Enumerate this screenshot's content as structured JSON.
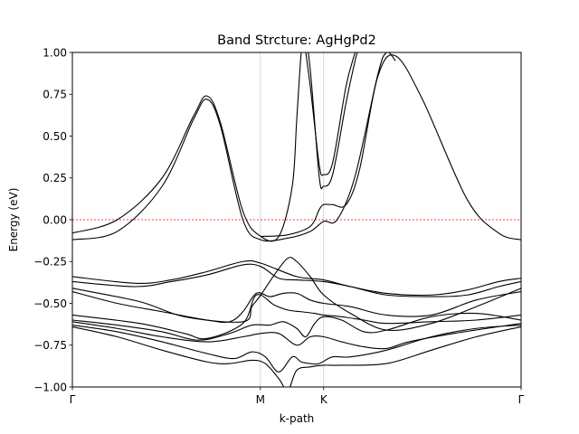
{
  "chart_data": {
    "type": "line",
    "title": "Band Strcture: AgHgPd2",
    "xlabel": "k-path",
    "ylabel": "Energy (eV)",
    "ylim": [
      -1.0,
      1.0
    ],
    "xlim": [
      0,
      1
    ],
    "yticks": [
      -1.0,
      -0.75,
      -0.5,
      -0.25,
      0.0,
      0.25,
      0.5,
      0.75,
      1.0
    ],
    "ytick_labels": [
      "−1.00",
      "−0.75",
      "−0.50",
      "−0.25",
      "0.00",
      "0.25",
      "0.50",
      "0.75",
      "1.00"
    ],
    "high_symmetry_points": [
      {
        "label": "Γ",
        "x": 0.0
      },
      {
        "label": "M",
        "x": 0.419
      },
      {
        "label": "K",
        "x": 0.56
      },
      {
        "label": "Γ",
        "x": 1.0
      }
    ],
    "fermi_level": 0.0,
    "line_color": "#000000",
    "fermi_color": "#ff0000",
    "vline_color": "#cccccc",
    "series": [
      {
        "x": [
          0,
          0.1,
          0.2,
          0.27,
          0.3,
          0.33,
          0.38,
          0.42,
          0.46,
          0.49,
          0.5,
          0.51,
          0.52
        ],
        "y": [
          -0.08,
          0.0,
          0.25,
          0.62,
          0.74,
          0.58,
          0.05,
          -0.1,
          -0.1,
          0.2,
          0.6,
          1.0,
          1.2
        ]
      },
      {
        "x": [
          0,
          0.1,
          0.2,
          0.27,
          0.3,
          0.33,
          0.38,
          0.42,
          0.48,
          0.53,
          0.56,
          0.59,
          0.63,
          0.68,
          0.7,
          0.72
        ],
        "y": [
          -0.12,
          -0.07,
          0.2,
          0.6,
          0.72,
          0.56,
          0.0,
          -0.12,
          -0.11,
          -0.07,
          -0.01,
          0.0,
          0.26,
          0.86,
          1.0,
          0.95
        ]
      },
      {
        "x": [
          0.51,
          0.53,
          0.55,
          0.56,
          0.58,
          0.61,
          0.63,
          0.64
        ],
        "y": [
          1.2,
          0.8,
          0.33,
          0.27,
          0.34,
          0.8,
          1.0,
          1.1
        ]
      },
      {
        "x": [
          0.51,
          0.53,
          0.55,
          0.56,
          0.58,
          0.61,
          0.63,
          0.64
        ],
        "y": [
          1.3,
          0.9,
          0.26,
          0.2,
          0.27,
          0.7,
          0.95,
          1.05
        ]
      },
      {
        "x": [
          0.42,
          0.48,
          0.53,
          0.55,
          0.56,
          0.58,
          0.61,
          0.64,
          0.68,
          0.72,
          0.78,
          0.88,
          0.95,
          1.0
        ],
        "y": [
          -0.1,
          -0.09,
          -0.04,
          0.06,
          0.09,
          0.09,
          0.09,
          0.3,
          0.85,
          0.98,
          0.72,
          0.12,
          -0.08,
          -0.12
        ]
      },
      {
        "x": [
          0,
          0.14,
          0.22,
          0.3,
          0.38,
          0.42,
          0.5,
          0.56,
          0.62,
          0.7,
          0.8,
          0.88,
          0.95,
          1.0
        ],
        "y": [
          -0.34,
          -0.38,
          -0.36,
          -0.31,
          -0.25,
          -0.26,
          -0.34,
          -0.36,
          -0.4,
          -0.44,
          -0.45,
          -0.42,
          -0.37,
          -0.35
        ]
      },
      {
        "x": [
          0,
          0.14,
          0.22,
          0.3,
          0.38,
          0.42,
          0.46,
          0.5,
          0.56,
          0.62,
          0.7,
          0.8,
          0.88,
          0.95,
          1.0
        ],
        "y": [
          -0.37,
          -0.4,
          -0.37,
          -0.33,
          -0.27,
          -0.28,
          -0.35,
          -0.36,
          -0.37,
          -0.4,
          -0.45,
          -0.46,
          -0.45,
          -0.4,
          -0.37
        ]
      },
      {
        "x": [
          0,
          0.1,
          0.2,
          0.3,
          0.35,
          0.38,
          0.41,
          0.44,
          0.47,
          0.5,
          0.53,
          0.56,
          0.62,
          0.7,
          0.8,
          0.9,
          1.0
        ],
        "y": [
          -0.43,
          -0.5,
          -0.55,
          -0.6,
          -0.61,
          -0.55,
          -0.44,
          -0.46,
          -0.44,
          -0.44,
          -0.48,
          -0.5,
          -0.52,
          -0.57,
          -0.57,
          -0.48,
          -0.43
        ]
      },
      {
        "x": [
          0,
          0.15,
          0.25,
          0.38,
          0.4,
          0.42,
          0.45,
          0.48,
          0.5,
          0.53,
          0.56,
          0.62,
          0.7,
          0.8,
          0.9,
          1.0
        ],
        "y": [
          -0.41,
          -0.49,
          -0.58,
          -0.61,
          -0.52,
          -0.45,
          -0.33,
          -0.23,
          -0.25,
          -0.34,
          -0.45,
          -0.56,
          -0.66,
          -0.62,
          -0.52,
          -0.41
        ]
      },
      {
        "x": [
          0,
          0.15,
          0.25,
          0.3,
          0.38,
          0.41,
          0.45,
          0.48,
          0.51,
          0.54,
          0.56,
          0.6,
          0.65,
          0.7,
          0.8,
          0.9,
          1.0
        ],
        "y": [
          -0.57,
          -0.62,
          -0.68,
          -0.71,
          -0.62,
          -0.45,
          -0.51,
          -0.54,
          -0.55,
          -0.56,
          -0.57,
          -0.58,
          -0.6,
          -0.62,
          -0.61,
          -0.6,
          -0.57
        ]
      },
      {
        "x": [
          0,
          0.1,
          0.2,
          0.28,
          0.35,
          0.4,
          0.44,
          0.47,
          0.5,
          0.52,
          0.54,
          0.56,
          0.6,
          0.65,
          0.7,
          0.8,
          0.9,
          1.0
        ],
        "y": [
          -0.6,
          -0.63,
          -0.67,
          -0.72,
          -0.68,
          -0.63,
          -0.63,
          -0.61,
          -0.65,
          -0.7,
          -0.62,
          -0.58,
          -0.6,
          -0.67,
          -0.66,
          -0.58,
          -0.56,
          -0.6
        ]
      },
      {
        "x": [
          0,
          0.1,
          0.2,
          0.3,
          0.38,
          0.42,
          0.46,
          0.5,
          0.53,
          0.56,
          0.6,
          0.65,
          0.7,
          0.75,
          0.85,
          1.0
        ],
        "y": [
          -0.61,
          -0.65,
          -0.7,
          -0.73,
          -0.7,
          -0.68,
          -0.68,
          -0.75,
          -0.7,
          -0.7,
          -0.73,
          -0.76,
          -0.77,
          -0.73,
          -0.68,
          -0.62
        ]
      },
      {
        "x": [
          0,
          0.1,
          0.2,
          0.3,
          0.36,
          0.4,
          0.43,
          0.46,
          0.49,
          0.51,
          0.53,
          0.55,
          0.58,
          0.62,
          0.7,
          0.8,
          0.9,
          1.0
        ],
        "y": [
          -0.63,
          -0.67,
          -0.73,
          -0.8,
          -0.83,
          -0.79,
          -0.82,
          -0.91,
          -0.82,
          -0.85,
          -0.86,
          -0.86,
          -0.82,
          -0.82,
          -0.78,
          -0.7,
          -0.65,
          -0.63
        ]
      },
      {
        "x": [
          0,
          0.1,
          0.2,
          0.3,
          0.35,
          0.4,
          0.43,
          0.46,
          0.48,
          0.5,
          0.53,
          0.56,
          0.6,
          0.7,
          0.8,
          0.9,
          1.0
        ],
        "y": [
          -0.64,
          -0.7,
          -0.78,
          -0.85,
          -0.86,
          -0.84,
          -0.86,
          -0.95,
          -1.02,
          -0.9,
          -0.88,
          -0.87,
          -0.87,
          -0.86,
          -0.78,
          -0.7,
          -0.64
        ]
      }
    ]
  }
}
